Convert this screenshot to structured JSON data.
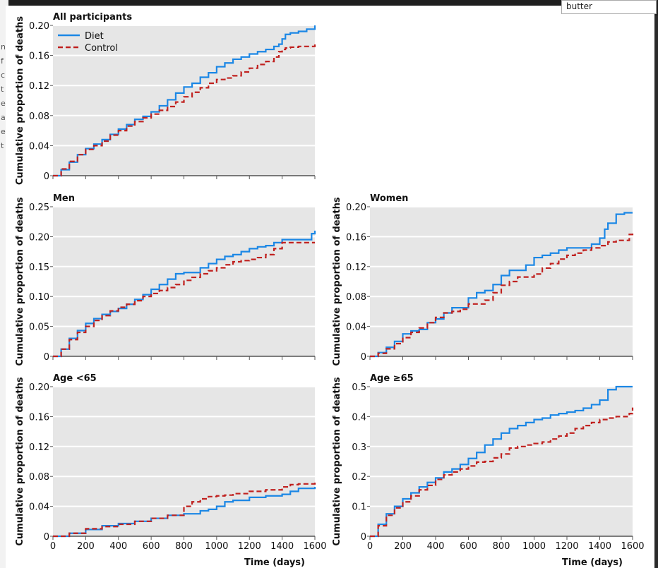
{
  "search": {
    "value": "butter"
  },
  "background_letters": [
    "n",
    "f",
    "c",
    "t",
    "e",
    "a",
    "e",
    "t"
  ],
  "colors": {
    "diet": "#1b87e5",
    "control": "#c0211f",
    "plot_bg": "#e6e6e6",
    "grid": "#ffffff"
  },
  "legend": {
    "diet": "Diet",
    "control": "Control"
  },
  "x_axis": {
    "label": "Time (days)",
    "ticks": [
      0,
      200,
      400,
      600,
      800,
      1000,
      1200,
      1400,
      1600
    ]
  },
  "y_axis_label": "Cumulative proportion of deaths",
  "chart_data": [
    {
      "type": "line",
      "step": true,
      "title": "All participants",
      "xlabel": "",
      "ylabel": "Cumulative proportion of deaths",
      "xlim": [
        0,
        1600
      ],
      "ylim": [
        0,
        0.2
      ],
      "yticks": [
        "0",
        "0.04",
        "0.08",
        "0.12",
        "0.16",
        "0.20"
      ],
      "ytick_values": [
        0,
        0.04,
        0.08,
        0.12,
        0.16,
        0.2
      ],
      "show_x_ticks": false,
      "series": [
        {
          "name": "Diet",
          "x": [
            0,
            50,
            100,
            150,
            200,
            250,
            300,
            350,
            400,
            450,
            500,
            550,
            600,
            650,
            700,
            750,
            800,
            850,
            900,
            950,
            1000,
            1050,
            1100,
            1150,
            1200,
            1250,
            1300,
            1350,
            1380,
            1400,
            1420,
            1450,
            1500,
            1550,
            1600
          ],
          "y": [
            0,
            0.008,
            0.018,
            0.028,
            0.036,
            0.042,
            0.048,
            0.055,
            0.062,
            0.068,
            0.075,
            0.079,
            0.085,
            0.093,
            0.101,
            0.11,
            0.118,
            0.123,
            0.131,
            0.137,
            0.145,
            0.15,
            0.155,
            0.158,
            0.162,
            0.165,
            0.168,
            0.172,
            0.175,
            0.182,
            0.188,
            0.19,
            0.192,
            0.195,
            0.2
          ]
        },
        {
          "name": "Control",
          "x": [
            0,
            50,
            100,
            150,
            200,
            250,
            300,
            350,
            400,
            450,
            500,
            550,
            600,
            650,
            700,
            750,
            800,
            850,
            900,
            950,
            1000,
            1050,
            1100,
            1150,
            1200,
            1250,
            1300,
            1350,
            1380,
            1400,
            1420,
            1450,
            1500,
            1550,
            1600
          ],
          "y": [
            0,
            0.009,
            0.019,
            0.028,
            0.035,
            0.04,
            0.046,
            0.054,
            0.06,
            0.066,
            0.072,
            0.077,
            0.082,
            0.087,
            0.092,
            0.098,
            0.105,
            0.111,
            0.117,
            0.123,
            0.128,
            0.13,
            0.133,
            0.138,
            0.143,
            0.148,
            0.152,
            0.158,
            0.165,
            0.168,
            0.17,
            0.171,
            0.172,
            0.172,
            0.177
          ]
        }
      ]
    },
    {
      "type": "line",
      "step": true,
      "title": "Men",
      "xlabel": "",
      "ylabel": "Cumulative proportion of deaths",
      "xlim": [
        0,
        1600
      ],
      "ylim": [
        0,
        0.25
      ],
      "yticks": [
        "0",
        "0.05",
        "0.10",
        "0.15",
        "0.20",
        "0.25"
      ],
      "ytick_values": [
        0,
        0.05,
        0.1,
        0.15,
        0.2,
        0.25
      ],
      "show_x_ticks": false,
      "series": [
        {
          "name": "Diet",
          "x": [
            0,
            50,
            100,
            150,
            200,
            250,
            300,
            350,
            400,
            450,
            500,
            550,
            600,
            650,
            700,
            750,
            800,
            850,
            900,
            950,
            1000,
            1050,
            1100,
            1150,
            1200,
            1250,
            1300,
            1350,
            1400,
            1450,
            1500,
            1550,
            1580,
            1600
          ],
          "y": [
            0,
            0.012,
            0.03,
            0.043,
            0.055,
            0.063,
            0.07,
            0.075,
            0.08,
            0.087,
            0.095,
            0.103,
            0.112,
            0.12,
            0.129,
            0.138,
            0.14,
            0.14,
            0.148,
            0.155,
            0.162,
            0.167,
            0.17,
            0.175,
            0.18,
            0.183,
            0.185,
            0.19,
            0.195,
            0.195,
            0.195,
            0.195,
            0.205,
            0.21
          ]
        },
        {
          "name": "Control",
          "x": [
            0,
            50,
            100,
            150,
            200,
            250,
            300,
            350,
            400,
            450,
            500,
            550,
            600,
            650,
            700,
            750,
            800,
            850,
            900,
            950,
            1000,
            1050,
            1100,
            1150,
            1200,
            1250,
            1300,
            1350,
            1400,
            1450,
            1500,
            1550,
            1600
          ],
          "y": [
            0,
            0.012,
            0.028,
            0.04,
            0.05,
            0.06,
            0.068,
            0.076,
            0.082,
            0.087,
            0.093,
            0.1,
            0.105,
            0.11,
            0.115,
            0.12,
            0.127,
            0.132,
            0.138,
            0.143,
            0.148,
            0.153,
            0.158,
            0.16,
            0.162,
            0.165,
            0.17,
            0.18,
            0.19,
            0.19,
            0.19,
            0.19,
            0.19
          ]
        }
      ]
    },
    {
      "type": "line",
      "step": true,
      "title": "Women",
      "xlabel": "",
      "ylabel": "Cumulative proportion of deaths",
      "xlim": [
        0,
        1600
      ],
      "ylim": [
        0,
        0.2
      ],
      "yticks": [
        "0",
        "0.04",
        "0.08",
        "0.12",
        "0.16",
        "0.20"
      ],
      "ytick_values": [
        0,
        0.04,
        0.08,
        0.12,
        0.16,
        0.2
      ],
      "show_x_ticks": false,
      "series": [
        {
          "name": "Diet",
          "x": [
            0,
            50,
            100,
            150,
            200,
            250,
            300,
            350,
            400,
            450,
            500,
            550,
            600,
            650,
            700,
            750,
            800,
            850,
            900,
            950,
            1000,
            1050,
            1100,
            1150,
            1200,
            1250,
            1300,
            1350,
            1400,
            1430,
            1450,
            1500,
            1550,
            1600
          ],
          "y": [
            0,
            0.005,
            0.012,
            0.02,
            0.03,
            0.034,
            0.036,
            0.045,
            0.05,
            0.058,
            0.065,
            0.065,
            0.078,
            0.085,
            0.088,
            0.096,
            0.108,
            0.115,
            0.115,
            0.122,
            0.132,
            0.135,
            0.138,
            0.142,
            0.145,
            0.145,
            0.145,
            0.15,
            0.158,
            0.17,
            0.178,
            0.19,
            0.192,
            0.192
          ]
        },
        {
          "name": "Control",
          "x": [
            0,
            50,
            100,
            150,
            200,
            250,
            300,
            350,
            400,
            450,
            500,
            550,
            600,
            650,
            700,
            750,
            800,
            850,
            900,
            950,
            1000,
            1050,
            1100,
            1150,
            1200,
            1250,
            1300,
            1350,
            1400,
            1450,
            1500,
            1550,
            1580,
            1600
          ],
          "y": [
            0,
            0.004,
            0.01,
            0.017,
            0.025,
            0.032,
            0.038,
            0.045,
            0.052,
            0.058,
            0.06,
            0.063,
            0.07,
            0.07,
            0.075,
            0.085,
            0.095,
            0.1,
            0.106,
            0.106,
            0.11,
            0.118,
            0.124,
            0.13,
            0.135,
            0.138,
            0.142,
            0.145,
            0.148,
            0.153,
            0.155,
            0.155,
            0.163,
            0.167
          ]
        }
      ]
    },
    {
      "type": "line",
      "step": true,
      "title": "Age <65",
      "xlabel": "",
      "ylabel": "Cumulative proportion of deaths",
      "xlim": [
        0,
        1600
      ],
      "ylim": [
        0,
        0.2
      ],
      "yticks": [
        "0",
        "0.04",
        "0.08",
        "0.12",
        "0.16",
        "0.20"
      ],
      "ytick_values": [
        0,
        0.04,
        0.08,
        0.12,
        0.16,
        0.2
      ],
      "show_x_ticks": true,
      "series": [
        {
          "name": "Diet",
          "x": [
            0,
            100,
            200,
            300,
            400,
            500,
            600,
            700,
            800,
            900,
            950,
            1000,
            1050,
            1100,
            1200,
            1300,
            1400,
            1450,
            1500,
            1600
          ],
          "y": [
            0,
            0.004,
            0.009,
            0.014,
            0.017,
            0.02,
            0.024,
            0.028,
            0.03,
            0.034,
            0.036,
            0.04,
            0.046,
            0.048,
            0.052,
            0.054,
            0.056,
            0.06,
            0.064,
            0.066
          ]
        },
        {
          "name": "Control",
          "x": [
            0,
            100,
            200,
            300,
            400,
            500,
            600,
            700,
            800,
            850,
            900,
            950,
            1000,
            1050,
            1100,
            1200,
            1300,
            1400,
            1450,
            1500,
            1600
          ],
          "y": [
            0,
            0.004,
            0.01,
            0.013,
            0.016,
            0.02,
            0.024,
            0.028,
            0.04,
            0.046,
            0.05,
            0.053,
            0.054,
            0.055,
            0.057,
            0.06,
            0.062,
            0.066,
            0.069,
            0.07,
            0.072
          ]
        }
      ]
    },
    {
      "type": "line",
      "step": true,
      "title": "Age ≥65",
      "xlabel": "",
      "ylabel": "Cumulative proportion of deaths",
      "xlim": [
        0,
        1600
      ],
      "ylim": [
        0,
        0.5
      ],
      "yticks": [
        "0",
        "0.1",
        "0.2",
        "0.3",
        "0.4",
        "0.5"
      ],
      "ytick_values": [
        0,
        0.1,
        0.2,
        0.3,
        0.4,
        0.5
      ],
      "show_x_ticks": true,
      "series": [
        {
          "name": "Diet",
          "x": [
            0,
            50,
            100,
            150,
            200,
            250,
            300,
            350,
            400,
            450,
            500,
            550,
            600,
            650,
            700,
            750,
            800,
            850,
            900,
            950,
            1000,
            1050,
            1100,
            1150,
            1200,
            1250,
            1300,
            1350,
            1400,
            1450,
            1500,
            1550,
            1600
          ],
          "y": [
            0,
            0.04,
            0.075,
            0.1,
            0.125,
            0.145,
            0.165,
            0.18,
            0.195,
            0.215,
            0.225,
            0.24,
            0.26,
            0.28,
            0.305,
            0.325,
            0.345,
            0.36,
            0.37,
            0.38,
            0.39,
            0.395,
            0.405,
            0.41,
            0.415,
            0.42,
            0.428,
            0.44,
            0.455,
            0.49,
            0.5,
            0.5,
            0.5
          ]
        },
        {
          "name": "Control",
          "x": [
            0,
            50,
            100,
            150,
            200,
            250,
            300,
            350,
            400,
            450,
            500,
            550,
            600,
            650,
            700,
            750,
            800,
            850,
            900,
            950,
            1000,
            1050,
            1100,
            1150,
            1200,
            1250,
            1300,
            1350,
            1400,
            1450,
            1500,
            1550,
            1580,
            1600
          ],
          "y": [
            0,
            0.035,
            0.07,
            0.095,
            0.115,
            0.135,
            0.155,
            0.17,
            0.19,
            0.205,
            0.215,
            0.225,
            0.235,
            0.248,
            0.25,
            0.262,
            0.275,
            0.295,
            0.3,
            0.305,
            0.31,
            0.315,
            0.325,
            0.335,
            0.345,
            0.36,
            0.37,
            0.38,
            0.39,
            0.395,
            0.4,
            0.4,
            0.41,
            0.43
          ]
        }
      ]
    }
  ]
}
